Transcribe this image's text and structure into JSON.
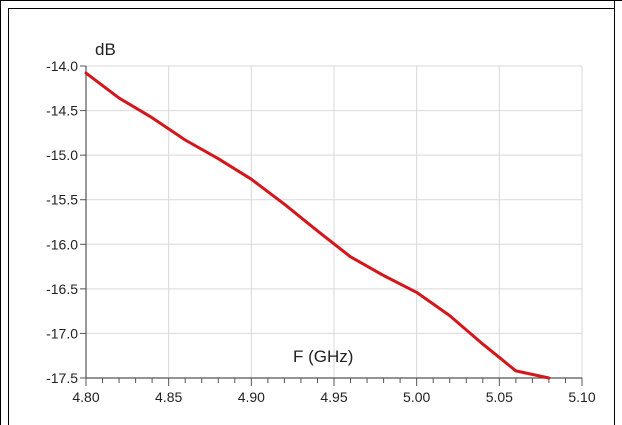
{
  "chart_data": {
    "type": "line",
    "title": "",
    "xlabel": "F (GHz)",
    "ylabel": "dB",
    "xlim": [
      4.8,
      5.1
    ],
    "ylim": [
      -17.5,
      -14.0
    ],
    "x_ticks": [
      "4.80",
      "4.85",
      "4.90",
      "4.95",
      "5.00",
      "5.05",
      "5.10"
    ],
    "y_ticks": [
      "-14.0",
      "-14.5",
      "-15.0",
      "-15.5",
      "-16.0",
      "-16.5",
      "-17.0",
      "-17.5"
    ],
    "grid": true,
    "series": [
      {
        "name": "",
        "color": "#d4161b",
        "x": [
          4.8,
          4.82,
          4.84,
          4.86,
          4.88,
          4.9,
          4.92,
          4.94,
          4.96,
          4.98,
          5.0,
          5.02,
          5.04,
          5.06,
          5.08
        ],
        "y": [
          -14.08,
          -14.36,
          -14.58,
          -14.83,
          -15.04,
          -15.27,
          -15.55,
          -15.85,
          -16.14,
          -16.35,
          -16.54,
          -16.8,
          -17.12,
          -17.42,
          -17.5
        ]
      }
    ]
  },
  "colors": {
    "grid": "#d9d9d9",
    "axis": "#555555",
    "frame": "#000000"
  }
}
